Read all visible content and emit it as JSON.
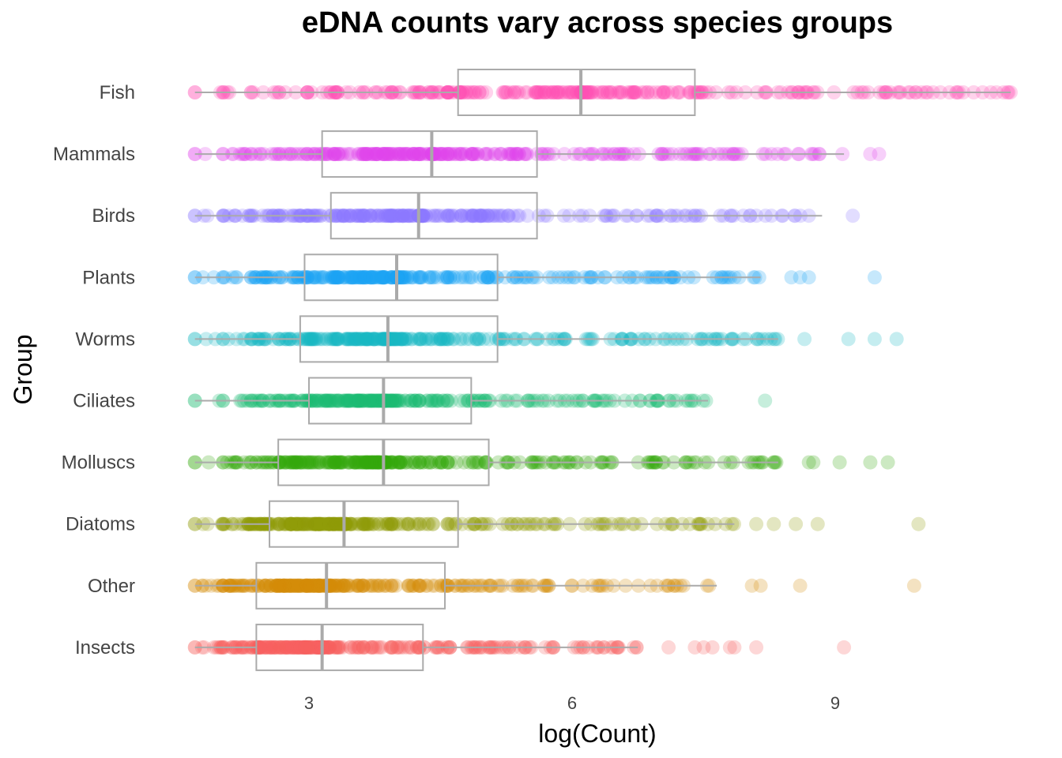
{
  "chart_data": {
    "type": "boxplot",
    "orientation": "horizontal",
    "title": "eDNA counts vary across species groups",
    "xlabel": "log(Count)",
    "ylabel": "Group",
    "xlim": [
      1.55,
      11.3
    ],
    "xticks": [
      3,
      6,
      9
    ],
    "grid": false,
    "legend": "none",
    "point_opacity": 0.25,
    "groups": [
      {
        "name": "Fish",
        "color": "#FF4FB4",
        "min": 1.7,
        "q1": 4.7,
        "median": 6.1,
        "q3": 7.4,
        "whisker_high": 11.0,
        "outliers": [
          11.0
        ]
      },
      {
        "name": "Mammals",
        "color": "#E044EC",
        "min": 1.7,
        "q1": 3.15,
        "median": 4.4,
        "q3": 5.6,
        "whisker_high": 9.1,
        "outliers": [
          9.4,
          9.5
        ]
      },
      {
        "name": "Birds",
        "color": "#8B79FF",
        "min": 1.7,
        "q1": 3.25,
        "median": 4.25,
        "q3": 5.6,
        "whisker_high": 8.85,
        "outliers": [
          9.2
        ]
      },
      {
        "name": "Plants",
        "color": "#1AA2F3",
        "min": 1.7,
        "q1": 2.95,
        "median": 4.0,
        "q3": 5.15,
        "whisker_high": 8.15,
        "outliers": [
          8.5,
          8.6,
          8.7,
          9.45
        ]
      },
      {
        "name": "Worms",
        "color": "#18B8C2",
        "min": 1.7,
        "q1": 2.9,
        "median": 3.9,
        "q3": 5.15,
        "whisker_high": 8.35,
        "outliers": [
          8.65,
          9.15,
          9.45,
          9.7
        ]
      },
      {
        "name": "Ciliates",
        "color": "#1DBA72",
        "min": 1.7,
        "q1": 3.0,
        "median": 3.85,
        "q3": 4.85,
        "whisker_high": 7.55,
        "outliers": [
          8.2
        ]
      },
      {
        "name": "Molluscs",
        "color": "#34A90C",
        "min": 1.7,
        "q1": 2.65,
        "median": 3.85,
        "q3": 5.05,
        "whisker_high": 8.35,
        "outliers": [
          8.7,
          8.75,
          9.05,
          9.4,
          9.6
        ]
      },
      {
        "name": "Diatoms",
        "color": "#8E9A06",
        "min": 1.7,
        "q1": 2.55,
        "median": 3.4,
        "q3": 4.7,
        "whisker_high": 7.85,
        "outliers": [
          8.1,
          8.3,
          8.55,
          8.8,
          9.95
        ]
      },
      {
        "name": "Other",
        "color": "#D48A06",
        "min": 1.7,
        "q1": 2.4,
        "median": 3.2,
        "q3": 4.55,
        "whisker_high": 7.65,
        "outliers": [
          8.05,
          8.15,
          8.6,
          9.9
        ]
      },
      {
        "name": "Insects",
        "color": "#F6615E",
        "min": 1.7,
        "q1": 2.4,
        "median": 3.15,
        "q3": 4.3,
        "whisker_high": 6.75,
        "outliers": [
          7.1,
          7.4,
          7.5,
          7.6,
          7.8,
          7.85,
          8.1,
          9.1
        ]
      }
    ]
  }
}
